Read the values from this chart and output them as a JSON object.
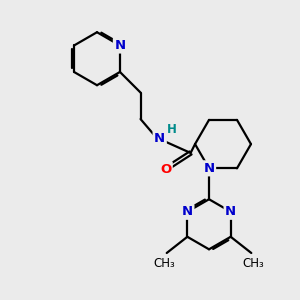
{
  "background_color": "#ebebeb",
  "bond_color": "#000000",
  "N_color": "#0000cc",
  "O_color": "#ff0000",
  "H_color": "#008b8b",
  "line_width": 1.6,
  "font_size_atom": 9.5,
  "fig_size": [
    3.0,
    3.0
  ],
  "dpi": 100,
  "xlim": [
    0,
    10
  ],
  "ylim": [
    0,
    10
  ]
}
